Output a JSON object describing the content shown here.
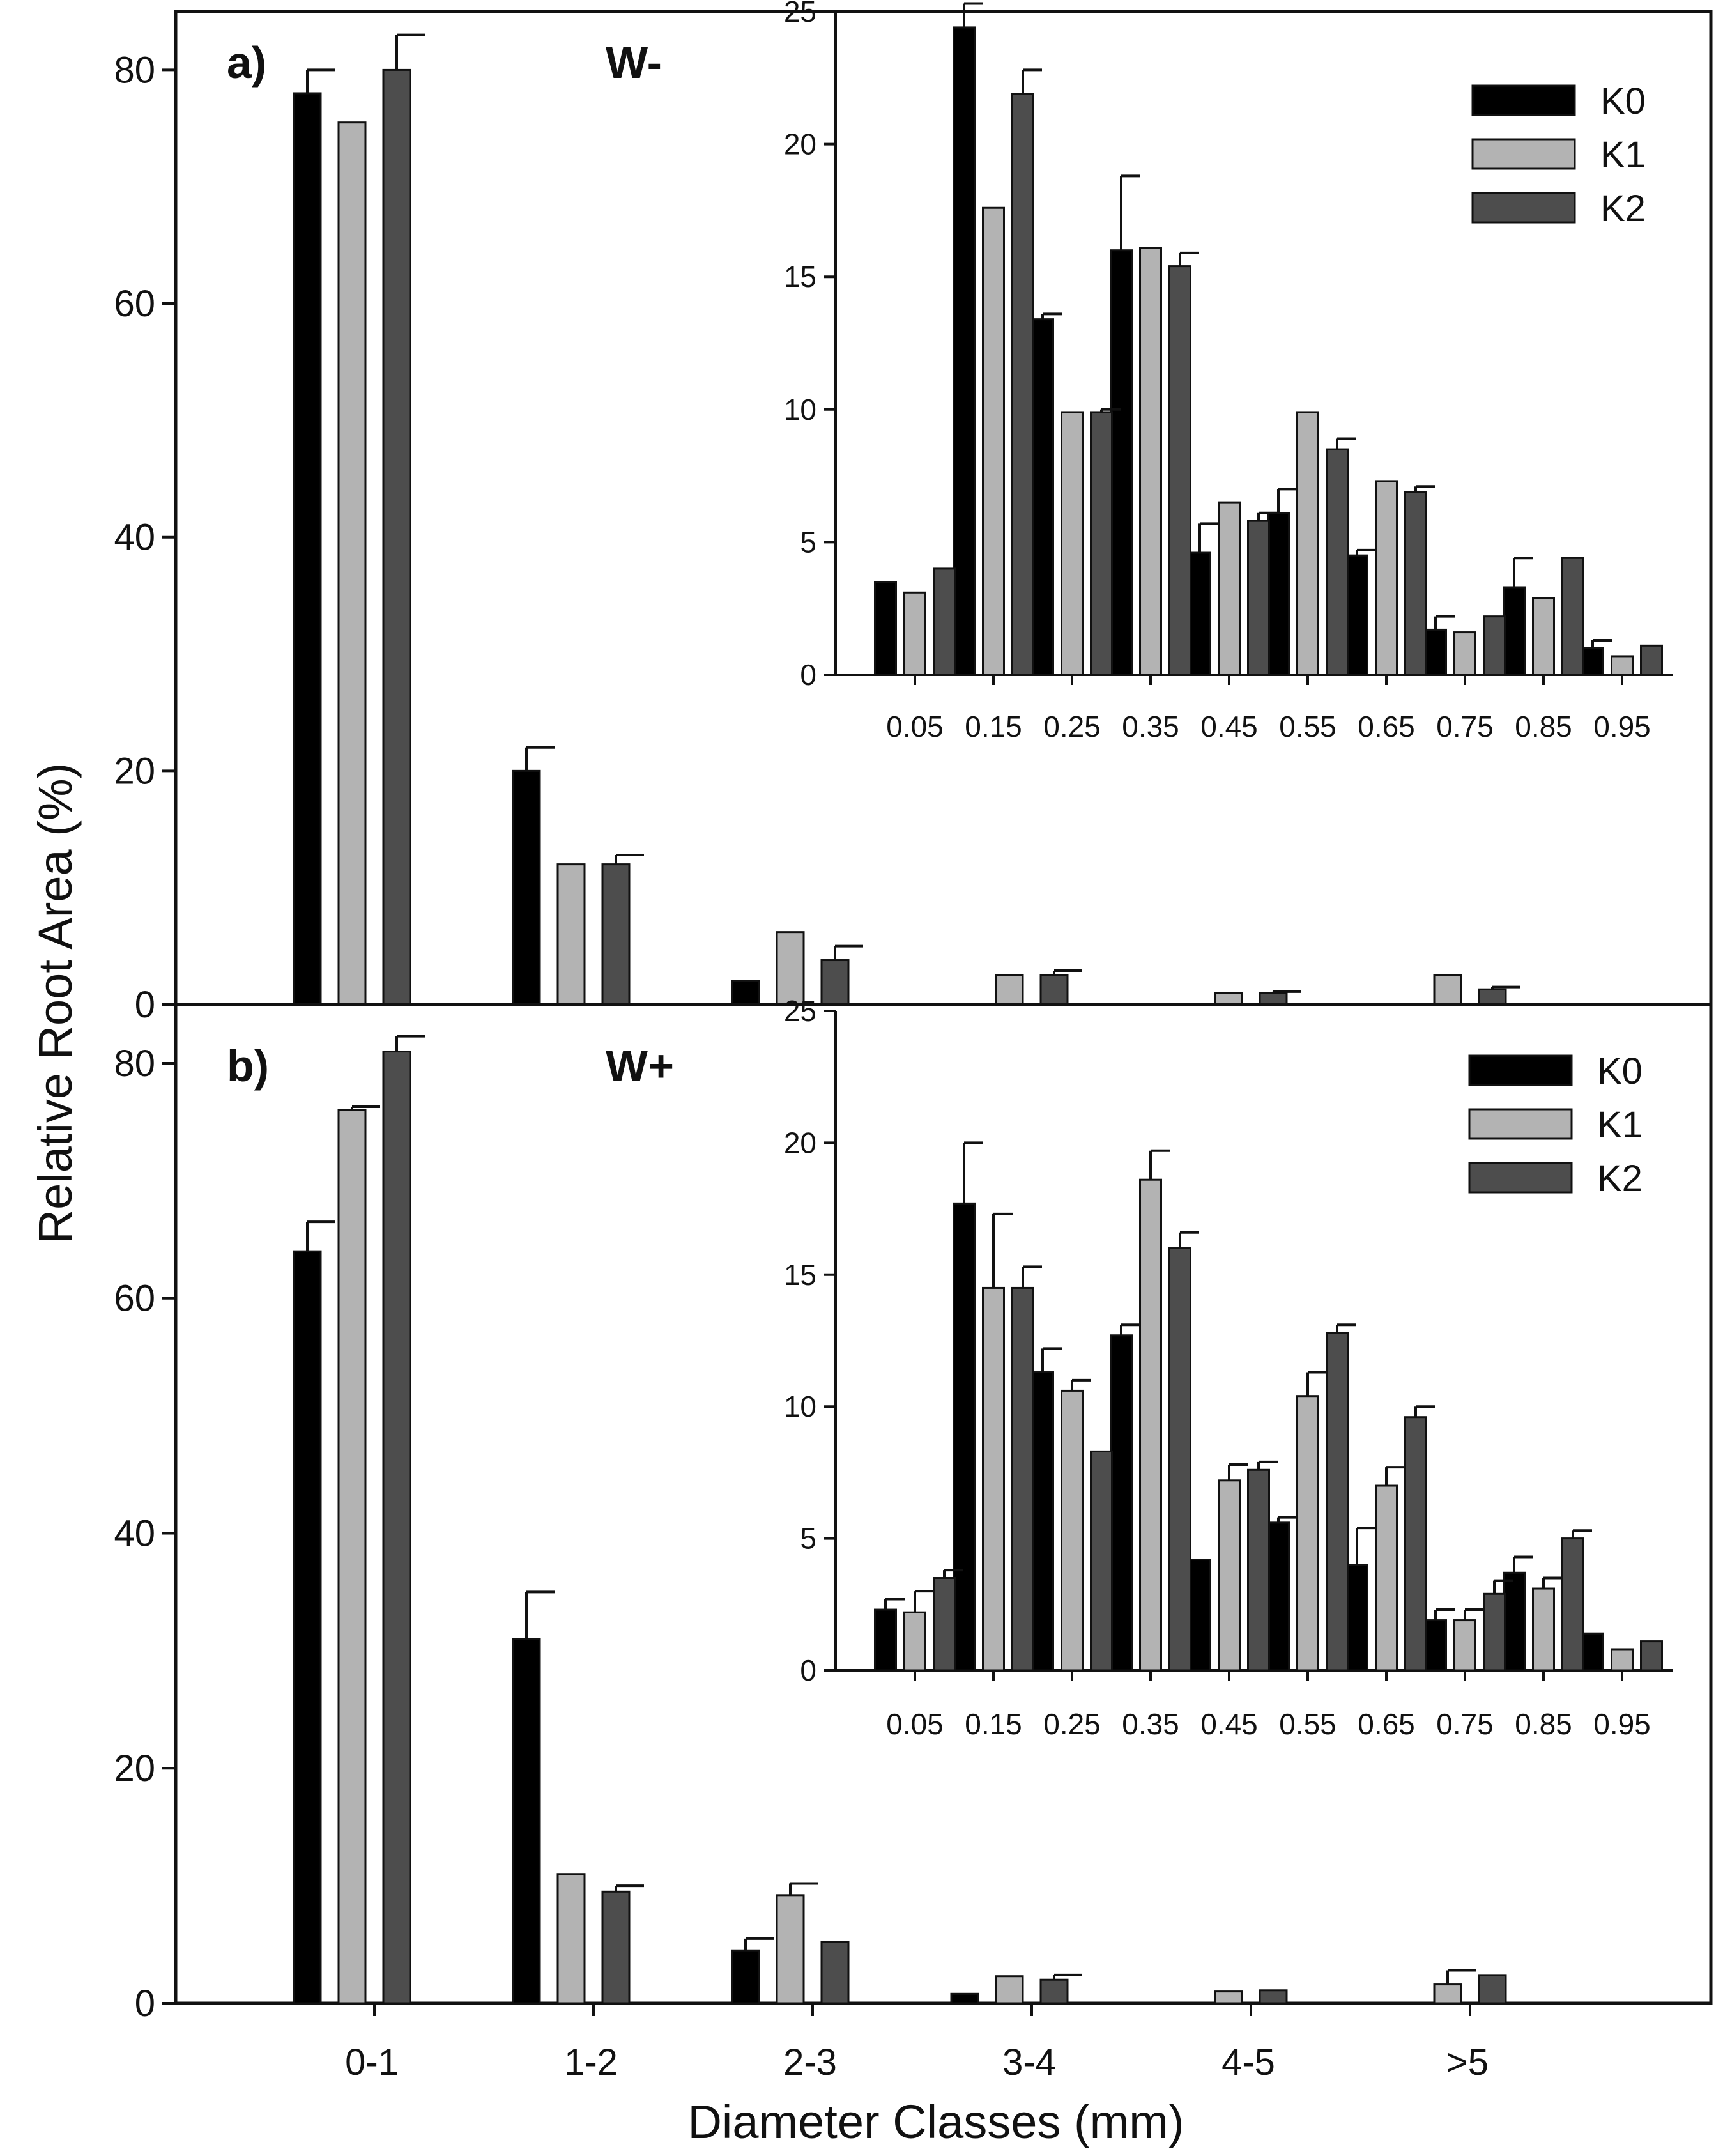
{
  "colors": {
    "K0": "#000000",
    "K1": "#b3b3b3",
    "K2": "#4d4d4d",
    "axis": "#111111",
    "background": "#ffffff"
  },
  "xlabel": "Diameter Classes (mm)",
  "ylabel": "Relative Root Area (%)",
  "chart_data": [
    {
      "panel": "a)",
      "title": "W-",
      "type": "bar",
      "categories": [
        "0-1",
        "1-2",
        "2-3",
        "3-4",
        "4-5",
        ">5"
      ],
      "ylim": [
        0,
        85
      ],
      "yticks": [
        0,
        20,
        40,
        60,
        80
      ],
      "series": [
        {
          "name": "K0",
          "values": [
            78,
            20,
            2,
            0,
            0,
            0
          ],
          "errors": [
            2,
            2,
            0,
            0,
            0,
            0
          ]
        },
        {
          "name": "K1",
          "values": [
            75.5,
            12,
            6.2,
            2.5,
            1,
            2.5
          ],
          "errors": [
            0,
            0,
            0,
            0,
            0,
            0
          ]
        },
        {
          "name": "K2",
          "values": [
            80,
            12,
            3.8,
            2.5,
            1,
            1.3
          ],
          "errors": [
            3,
            0.8,
            1.2,
            0.4,
            0.1,
            0.2
          ]
        }
      ],
      "inset": {
        "type": "bar",
        "categories": [
          "0.05",
          "0.15",
          "0.25",
          "0.35",
          "0.45",
          "0.55",
          "0.65",
          "0.75",
          "0.85",
          "0.95"
        ],
        "ylim": [
          0,
          25
        ],
        "yticks": [
          0,
          5,
          10,
          15,
          20,
          25
        ],
        "legend": [
          "K0",
          "K1",
          "K2"
        ],
        "legend_position": "top-right",
        "series": [
          {
            "name": "K0",
            "values": [
              3.5,
              24.4,
              13.4,
              16,
              4.6,
              6.1,
              4.5,
              1.7,
              3.3,
              1
            ],
            "errors": [
              0,
              0.9,
              0.2,
              2.8,
              1.1,
              0.9,
              0.2,
              0.5,
              1.1,
              0.3
            ]
          },
          {
            "name": "K1",
            "values": [
              3.1,
              17.6,
              9.9,
              16.1,
              6.5,
              9.9,
              7.3,
              1.6,
              2.9,
              0.7
            ],
            "errors": [
              0,
              0,
              0,
              0,
              0,
              0,
              0,
              0,
              0,
              0
            ]
          },
          {
            "name": "K2",
            "values": [
              4,
              21.9,
              9.9,
              15.4,
              5.8,
              8.5,
              6.9,
              2.2,
              4.4,
              1.1
            ],
            "errors": [
              0,
              0.9,
              0.1,
              0.5,
              0.3,
              0.4,
              0.2,
              0,
              0,
              0
            ]
          }
        ]
      }
    },
    {
      "panel": "b)",
      "title": "W+",
      "type": "bar",
      "categories": [
        "0-1",
        "1-2",
        "2-3",
        "3-4",
        "4-5",
        ">5"
      ],
      "ylim": [
        0,
        85
      ],
      "yticks": [
        0,
        20,
        40,
        60,
        80
      ],
      "series": [
        {
          "name": "K0",
          "values": [
            64,
            31,
            4.5,
            0.8,
            0,
            0
          ],
          "errors": [
            2.5,
            4,
            1,
            0,
            0,
            0
          ]
        },
        {
          "name": "K1",
          "values": [
            76,
            11,
            9.2,
            2.3,
            1,
            1.6
          ],
          "errors": [
            0.3,
            0,
            1,
            0,
            0,
            1.2
          ]
        },
        {
          "name": "K2",
          "values": [
            81,
            9.5,
            5.2,
            2,
            1.1,
            2.4
          ],
          "errors": [
            1.3,
            0.5,
            0,
            0.4,
            0,
            0
          ]
        }
      ],
      "inset": {
        "type": "bar",
        "categories": [
          "0.05",
          "0.15",
          "0.25",
          "0.35",
          "0.45",
          "0.55",
          "0.65",
          "0.75",
          "0.85",
          "0.95"
        ],
        "ylim": [
          0,
          25
        ],
        "yticks": [
          0,
          5,
          10,
          15,
          20,
          25
        ],
        "legend": [
          "K0",
          "K1",
          "K2"
        ],
        "legend_position": "top-right",
        "series": [
          {
            "name": "K0",
            "values": [
              2.3,
              17.7,
              11.3,
              12.7,
              4.2,
              5.6,
              4,
              1.9,
              3.7,
              1.4
            ],
            "errors": [
              0.4,
              2.3,
              0.9,
              0.4,
              0,
              0.2,
              1.4,
              0.4,
              0.6,
              0
            ]
          },
          {
            "name": "K1",
            "values": [
              2.2,
              14.5,
              10.6,
              18.6,
              7.2,
              10.4,
              7,
              1.9,
              3.1,
              0.8
            ],
            "errors": [
              0.8,
              2.8,
              0.4,
              1.1,
              0.6,
              0.9,
              0.7,
              0.4,
              0.4,
              0
            ]
          },
          {
            "name": "K2",
            "values": [
              3.5,
              14.5,
              8.3,
              16,
              7.6,
              12.8,
              9.6,
              2.9,
              5,
              1.1
            ],
            "errors": [
              0.3,
              0.8,
              0,
              0.6,
              0.3,
              0.3,
              0.4,
              0.5,
              0.3,
              0
            ]
          }
        ]
      }
    }
  ]
}
